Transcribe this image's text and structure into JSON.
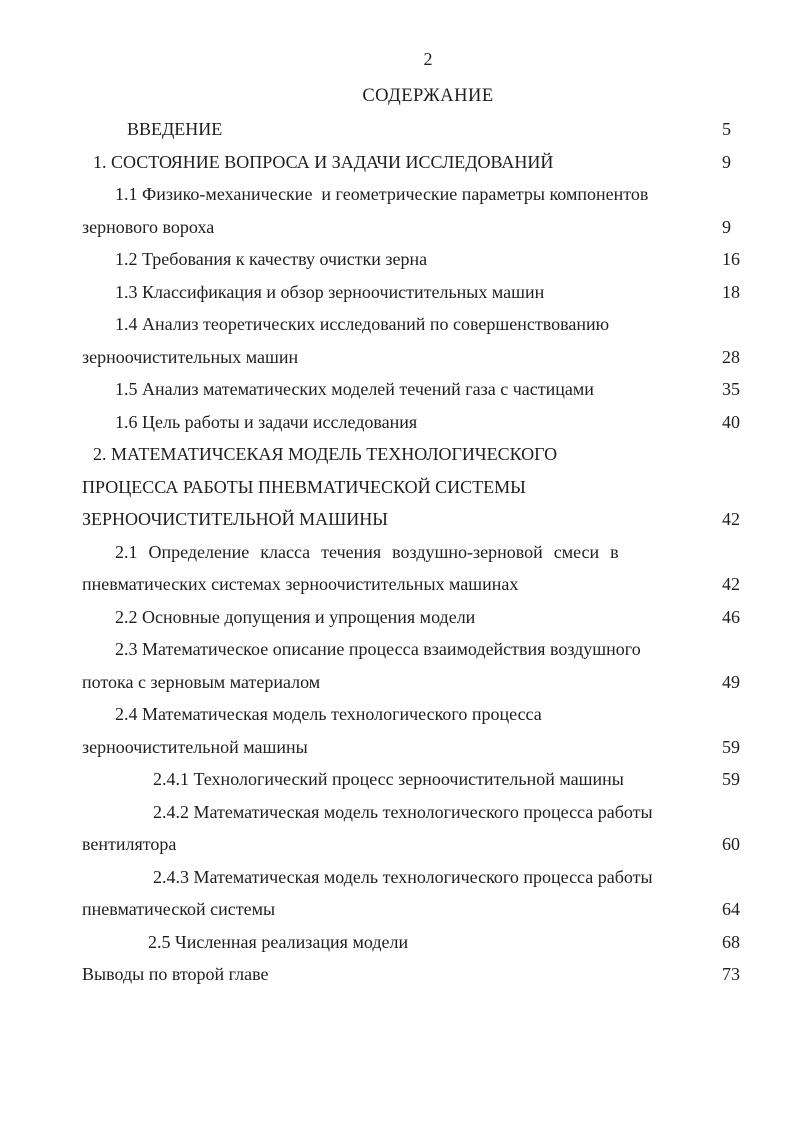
{
  "page": {
    "number": "2",
    "title": "СОДЕРЖАНИЕ"
  },
  "toc": {
    "entries": [
      {
        "level": "intro",
        "lines": [
          "ВВЕДЕНИЕ"
        ],
        "page": "5"
      },
      {
        "level": "chapter",
        "lines": [
          "1. СОСТОЯНИЕ ВОПРОСА И ЗАДАЧИ ИССЛЕДОВАНИЙ"
        ],
        "page": "9"
      },
      {
        "level": "section",
        "lines": [
          "1.1 Физико-механические  и геометрические параметры компонентов",
          "зернового вороха"
        ],
        "page": "9"
      },
      {
        "level": "section",
        "lines": [
          "1.2 Требования к качеству очистки зерна"
        ],
        "page": "16"
      },
      {
        "level": "section",
        "lines": [
          "1.3 Классификация и обзор зерноочистительных машин"
        ],
        "page": "18"
      },
      {
        "level": "section",
        "lines": [
          "1.4 Анализ теоретических исследований по совершенствованию",
          "зерноочистительных машин"
        ],
        "page": "28"
      },
      {
        "level": "section",
        "lines": [
          "1.5 Анализ математических моделей течений газа с частицами"
        ],
        "page": "35"
      },
      {
        "level": "section",
        "lines": [
          "1.6 Цель работы и задачи исследования"
        ],
        "page": "40"
      },
      {
        "level": "chapter",
        "lines": [
          "2. МАТЕМАТИЧСЕКАЯ МОДЕЛЬ ТЕХНОЛОГИЧЕСКОГО",
          "ПРОЦЕССА РАБОТЫ ПНЕВМАТИЧЕСКОЙ СИСТЕМЫ",
          "ЗЕРНООЧИСТИТЕЛЬНОЙ МАШИНЫ"
        ],
        "page": "42"
      },
      {
        "level": "section",
        "lines": [
          "2.1 Определение класса течения воздушно-зерновой смеси в",
          "пневматических системах зерноочистительных машинах"
        ],
        "wide_lines": [
          0
        ],
        "page": "42"
      },
      {
        "level": "section",
        "lines": [
          "2.2 Основные допущения и упрощения модели"
        ],
        "page": "46"
      },
      {
        "level": "section",
        "lines": [
          "2.3 Математическое описание процесса взаимодействия воздушного",
          "потока с зерновым материалом"
        ],
        "page": "49"
      },
      {
        "level": "section",
        "lines": [
          "2.4 Математическая модель технологического процесса",
          "зерноочистительной машины"
        ],
        "page": "59"
      },
      {
        "level": "subsection",
        "lines": [
          "2.4.1 Технологический процесс зерноочистительной машины"
        ],
        "page": "59"
      },
      {
        "level": "subsection",
        "lines": [
          "2.4.2 Математическая модель технологического процесса работы",
          "вентилятора"
        ],
        "page": "60"
      },
      {
        "level": "subsection",
        "lines": [
          "2.4.3 Математическая модель технологического процесса работы",
          "пневматической системы"
        ],
        "page": "64"
      },
      {
        "level": "section2",
        "lines": [
          "2.5 Численная реализация модели"
        ],
        "page": "68"
      },
      {
        "level": "none",
        "lines": [
          "Выводы по второй главе"
        ],
        "page": "73"
      }
    ]
  }
}
